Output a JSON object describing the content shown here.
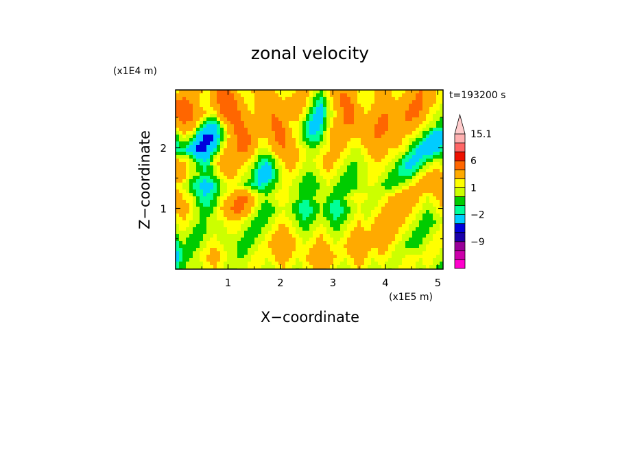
{
  "chart_data": {
    "type": "heatmap",
    "title": "zonal velocity",
    "xlabel": "X−coordinate",
    "ylabel": "Z−coordinate",
    "x_scale_label": "(x1E5 m)",
    "y_scale_label": "(x1E4 m)",
    "time_label": "t=193200 s",
    "x_ticks": [
      1,
      2,
      3,
      4,
      5
    ],
    "y_ticks": [
      1,
      2
    ],
    "x_tick_labels": [
      "1",
      "2",
      "3",
      "4",
      "5"
    ],
    "y_tick_labels": [
      "1",
      "2"
    ],
    "xlim": [
      0,
      5.1
    ],
    "ylim": [
      0,
      2.95
    ],
    "colorbar": {
      "labels": [
        {
          "value": 15.1,
          "text": "15.1"
        },
        {
          "value": 6,
          "text": "6"
        },
        {
          "value": 1,
          "text": "1"
        },
        {
          "value": -2,
          "text": "−2"
        },
        {
          "value": -9,
          "text": "−9"
        }
      ],
      "levels": [
        -15,
        -12,
        -9,
        -6,
        -4,
        -2,
        -1,
        0,
        1,
        2,
        4,
        6,
        9,
        12,
        15.1
      ],
      "colors": [
        "#ff00cc",
        "#cc00aa",
        "#990099",
        "#1a00aa",
        "#0000dd",
        "#00ccff",
        "#00ff99",
        "#00cc00",
        "#ccff00",
        "#ffff00",
        "#ffaa00",
        "#ff6600",
        "#ee1100",
        "#ff6666",
        "#ffb0b0",
        "#ffcccc"
      ],
      "extend": "max"
    },
    "field": [
      [
        1,
        2,
        2,
        3,
        1,
        3,
        5,
        4,
        2,
        1,
        2,
        4,
        3,
        2,
        1,
        1,
        2,
        3,
        1,
        0,
        2,
        3,
        4,
        3,
        2,
        1,
        2,
        3,
        2,
        1,
        2,
        3,
        4,
        3,
        2,
        1
      ],
      [
        4,
        5,
        4,
        2,
        1,
        3,
        5,
        6,
        4,
        2,
        1,
        3,
        4,
        3,
        2,
        3,
        4,
        2,
        0,
        -2,
        1,
        3,
        5,
        4,
        2,
        1,
        2,
        4,
        3,
        2,
        3,
        4,
        5,
        3,
        2,
        1
      ],
      [
        5,
        6,
        5,
        3,
        2,
        1,
        4,
        6,
        5,
        3,
        2,
        2,
        4,
        4,
        3,
        2,
        3,
        1,
        -2,
        -3,
        0,
        2,
        4,
        5,
        3,
        2,
        3,
        4,
        4,
        3,
        4,
        5,
        4,
        2,
        1,
        0
      ],
      [
        2,
        4,
        3,
        1,
        -2,
        -3,
        0,
        3,
        5,
        4,
        3,
        2,
        3,
        5,
        4,
        2,
        1,
        -1,
        -3,
        -2,
        1,
        3,
        4,
        4,
        3,
        3,
        4,
        5,
        4,
        3,
        4,
        3,
        2,
        1,
        0,
        -1
      ],
      [
        -1,
        1,
        0,
        -3,
        -5,
        -4,
        -1,
        2,
        4,
        5,
        4,
        2,
        2,
        4,
        5,
        3,
        1,
        -1,
        -2,
        -1,
        2,
        4,
        3,
        2,
        2,
        3,
        4,
        4,
        3,
        3,
        2,
        1,
        0,
        -2,
        -4,
        -3
      ],
      [
        -2,
        -1,
        -3,
        -5,
        -4,
        -2,
        1,
        3,
        4,
        5,
        3,
        1,
        1,
        3,
        4,
        3,
        2,
        1,
        0,
        1,
        2,
        3,
        2,
        1,
        1,
        2,
        3,
        3,
        2,
        2,
        1,
        -1,
        -3,
        -4,
        -3,
        -1
      ],
      [
        3,
        2,
        1,
        -1,
        -2,
        1,
        3,
        4,
        3,
        2,
        1,
        -1,
        -2,
        0,
        2,
        3,
        2,
        1,
        1,
        2,
        3,
        2,
        1,
        0,
        0,
        1,
        2,
        2,
        1,
        0,
        -2,
        -3,
        -2,
        0,
        1,
        0
      ],
      [
        4,
        3,
        1,
        0,
        -1,
        0,
        2,
        3,
        2,
        1,
        0,
        -3,
        -4,
        -1,
        1,
        2,
        1,
        0,
        0,
        1,
        2,
        1,
        0,
        -1,
        0,
        1,
        2,
        1,
        0,
        -1,
        -2,
        -1,
        1,
        2,
        3,
        2
      ],
      [
        2,
        1,
        -1,
        -2,
        -3,
        -2,
        0,
        1,
        1,
        0,
        -1,
        -2,
        -1,
        0,
        1,
        1,
        0,
        -1,
        -1,
        0,
        1,
        0,
        -1,
        -1,
        0,
        1,
        1,
        0,
        -1,
        0,
        1,
        2,
        3,
        4,
        3,
        2
      ],
      [
        3,
        2,
        1,
        -1,
        -2,
        -1,
        1,
        2,
        4,
        5,
        3,
        1,
        0,
        1,
        2,
        1,
        0,
        -1,
        0,
        1,
        0,
        -1,
        0,
        1,
        2,
        1,
        0,
        1,
        2,
        3,
        4,
        3,
        2,
        1,
        2,
        3
      ],
      [
        2,
        3,
        2,
        0,
        -1,
        0,
        2,
        4,
        5,
        4,
        2,
        0,
        -1,
        0,
        1,
        0,
        -1,
        -2,
        -1,
        0,
        -1,
        -2,
        -1,
        0,
        1,
        0,
        1,
        2,
        3,
        4,
        3,
        2,
        1,
        0,
        1,
        2
      ],
      [
        1,
        2,
        1,
        0,
        0,
        1,
        1,
        2,
        2,
        1,
        0,
        -1,
        0,
        1,
        2,
        1,
        0,
        -1,
        0,
        1,
        0,
        -1,
        0,
        1,
        2,
        1,
        2,
        3,
        4,
        3,
        2,
        1,
        0,
        -1,
        0,
        1
      ],
      [
        0,
        1,
        0,
        -1,
        0,
        1,
        0,
        1,
        1,
        0,
        -1,
        0,
        1,
        2,
        3,
        2,
        1,
        0,
        1,
        2,
        1,
        0,
        1,
        2,
        3,
        2,
        3,
        4,
        3,
        2,
        1,
        0,
        -1,
        0,
        1,
        2
      ],
      [
        -2,
        0,
        -1,
        0,
        1,
        2,
        1,
        0,
        0,
        -1,
        0,
        1,
        2,
        3,
        4,
        3,
        2,
        1,
        2,
        3,
        2,
        1,
        2,
        3,
        4,
        3,
        2,
        3,
        2,
        1,
        0,
        -1,
        0,
        1,
        2,
        1
      ],
      [
        -3,
        -1,
        0,
        1,
        2,
        3,
        2,
        1,
        0,
        0,
        1,
        2,
        1,
        2,
        3,
        2,
        1,
        2,
        3,
        4,
        3,
        2,
        1,
        2,
        3,
        2,
        1,
        2,
        1,
        0,
        1,
        2,
        1,
        2,
        1,
        0
      ],
      [
        -1,
        0,
        1,
        0,
        1,
        2,
        1,
        0,
        0,
        1,
        2,
        1,
        0,
        1,
        2,
        1,
        0,
        1,
        2,
        3,
        2,
        1,
        0,
        1,
        2,
        1,
        0,
        1,
        0,
        1,
        2,
        1,
        0,
        1,
        0,
        -1
      ]
    ]
  }
}
